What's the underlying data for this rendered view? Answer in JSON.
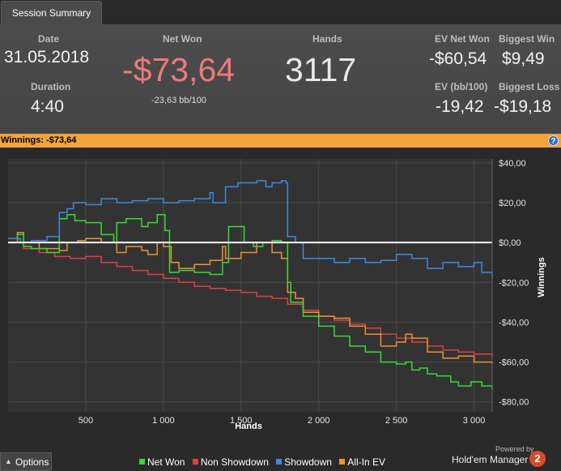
{
  "tab": {
    "label": "Session Summary"
  },
  "summary": {
    "date_label": "Date",
    "date": "31.05.2018",
    "duration_label": "Duration",
    "duration": "4:40",
    "netwon_label": "Net Won",
    "netwon": "-$73,64",
    "netwon_bb": "-23,63 bb/100",
    "hands_label": "Hands",
    "hands": "3117",
    "ev_label": "EV Net Won",
    "ev": "-$60,54",
    "evbb_label": "EV (bb/100)",
    "evbb": "-19,42",
    "bigwin_label": "Biggest Win",
    "bigwin": "$9,49",
    "bigloss_label": "Biggest Loss",
    "bigloss": "-$19,18"
  },
  "winnings_bar": {
    "text": "Winnings:  -$73,64",
    "help_icon": "help-icon"
  },
  "colors": {
    "net_won": "#33dd33",
    "non_showdown": "#e04040",
    "showdown": "#3b8be0",
    "allin_ev": "#f0912d",
    "netwon_text": "#f07878",
    "winbar": "#f0a43a"
  },
  "chart_data": {
    "type": "line",
    "xlabel": "Hands",
    "ylabel": "Winnings",
    "xlim": [
      0,
      3117
    ],
    "ylim": [
      -85,
      42
    ],
    "x_ticks": [
      500,
      1000,
      1500,
      2000,
      2500,
      3000
    ],
    "x_tick_labels": [
      "500",
      "1 000",
      "1 500",
      "2 000",
      "2 500",
      "3 000"
    ],
    "y_ticks": [
      40,
      20,
      0,
      -20,
      -40,
      -60,
      -80
    ],
    "y_tick_labels": [
      "$40,00",
      "$20,00",
      "$0,00",
      "-$20,00",
      "-$40,00",
      "-$60,00",
      "-$80,00"
    ],
    "grid": true,
    "legend_position": "bottom",
    "series": [
      {
        "name": "Net Won",
        "color": "#33dd33",
        "x": [
          0,
          60,
          100,
          150,
          250,
          330,
          380,
          430,
          500,
          600,
          680,
          700,
          760,
          860,
          900,
          960,
          1010,
          1040,
          1100,
          1200,
          1300,
          1380,
          1420,
          1520,
          1580,
          1640,
          1700,
          1760,
          1800,
          1820,
          1900,
          2000,
          2100,
          2200,
          2300,
          2400,
          2500,
          2560,
          2600,
          2650,
          2700,
          2760,
          2850,
          2900,
          2980,
          3050,
          3117
        ],
        "y": [
          2,
          4,
          -2,
          -3,
          -5,
          12,
          14,
          11,
          10,
          4,
          0,
          10,
          12,
          8,
          10,
          14,
          6,
          -15,
          -14,
          -15,
          -16,
          -10,
          8,
          0,
          -2,
          0,
          1,
          0,
          -20,
          -30,
          -37,
          -42,
          -47,
          -52,
          -55,
          -60,
          -61,
          -60,
          -64,
          -63,
          -66,
          -67,
          -70,
          -72,
          -70,
          -72,
          -74
        ]
      },
      {
        "name": "Non Showdown",
        "color": "#e04040",
        "x": [
          0,
          100,
          200,
          300,
          400,
          500,
          600,
          700,
          800,
          900,
          1000,
          1100,
          1200,
          1300,
          1400,
          1500,
          1600,
          1700,
          1800,
          1900,
          2000,
          2100,
          2200,
          2300,
          2400,
          2500,
          2600,
          2700,
          2800,
          2900,
          3000,
          3117
        ],
        "y": [
          0,
          -3,
          -5,
          -7,
          -8,
          -7,
          -10,
          -12,
          -14,
          -16,
          -18,
          -20,
          -22,
          -23,
          -24,
          -25,
          -27,
          -28,
          -31,
          -34,
          -37,
          -39,
          -41,
          -43,
          -46,
          -48,
          -50,
          -52,
          -54,
          -55,
          -56,
          -57
        ]
      },
      {
        "name": "Showdown",
        "color": "#3b8be0",
        "x": [
          0,
          80,
          150,
          250,
          330,
          380,
          420,
          500,
          600,
          700,
          800,
          900,
          1000,
          1100,
          1200,
          1300,
          1320,
          1400,
          1480,
          1600,
          1660,
          1700,
          1760,
          1790,
          1800,
          1850,
          1900,
          2000,
          2100,
          2200,
          2300,
          2400,
          2500,
          2600,
          2700,
          2800,
          2900,
          3000,
          3050,
          3117
        ],
        "y": [
          2,
          0,
          1,
          3,
          15,
          17,
          20,
          19,
          22,
          20,
          21,
          22,
          20,
          21,
          22,
          25,
          20,
          28,
          30,
          31,
          28,
          30,
          31,
          30,
          3,
          0,
          -8,
          -8,
          -10,
          -8,
          -10,
          -9,
          -6,
          -8,
          -13,
          -10,
          -12,
          -10,
          -15,
          -18
        ]
      },
      {
        "name": "All-In EV",
        "color": "#f0912d",
        "x": [
          0,
          60,
          100,
          200,
          330,
          380,
          450,
          500,
          600,
          700,
          760,
          860,
          900,
          960,
          1000,
          1050,
          1100,
          1200,
          1300,
          1380,
          1400,
          1500,
          1600,
          1700,
          1760,
          1800,
          1850,
          1900,
          2000,
          2100,
          2200,
          2300,
          2400,
          2500,
          2560,
          2600,
          2700,
          2800,
          2900,
          3000,
          3117
        ],
        "y": [
          0,
          5,
          0,
          -3,
          -4,
          0,
          1,
          2,
          0,
          -5,
          -2,
          -4,
          -6,
          0,
          -2,
          -10,
          -13,
          -11,
          -9,
          -2,
          -8,
          -5,
          0,
          -5,
          -8,
          -25,
          -28,
          -35,
          -37,
          -38,
          -42,
          -46,
          -52,
          -50,
          -46,
          -48,
          -55,
          -58,
          -57,
          -60,
          -61
        ]
      }
    ]
  },
  "legend": [
    "Net Won",
    "Non Showdown",
    "Showdown",
    "All-In EV"
  ],
  "options": {
    "label": "Options"
  },
  "brand": {
    "powered": "Powered by",
    "name": "Hold'em Manager",
    "badge": "2"
  }
}
